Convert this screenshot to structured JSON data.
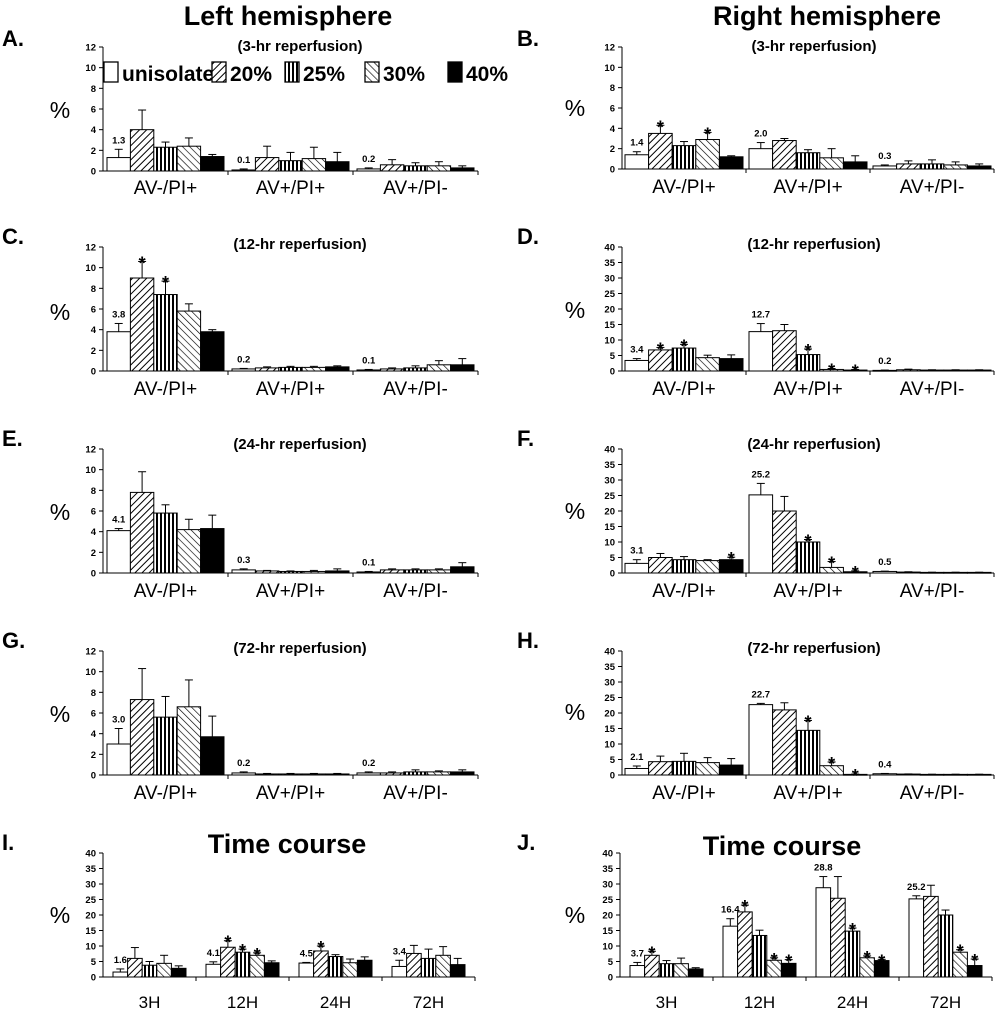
{
  "headers": {
    "left": "Left hemisphere",
    "right": "Right hemisphere"
  },
  "legend": [
    "unisolated",
    "20%",
    "25%",
    "30%",
    "40%"
  ],
  "series_fills": [
    "white",
    "hatch-diag",
    "hatch-vert",
    "hatch-back",
    "black"
  ],
  "chart_data": [
    {
      "id": "A",
      "letter": "A.",
      "title": "(3-hr reperfusion)",
      "type": "bar",
      "ylabel": "%",
      "ylim": [
        0,
        12
      ],
      "yticks": [
        0,
        2,
        4,
        6,
        8,
        10,
        12
      ],
      "categories": [
        "AV-/PI+",
        "AV+/PI+",
        "AV+/PI-"
      ],
      "values": [
        [
          1.3,
          4.0,
          2.3,
          2.4,
          1.4
        ],
        [
          0.1,
          1.3,
          1.0,
          1.2,
          0.9
        ],
        [
          0.2,
          0.6,
          0.5,
          0.5,
          0.3
        ]
      ],
      "errors": [
        [
          0.8,
          1.9,
          0.5,
          0.8,
          0.2
        ],
        [
          0.1,
          1.1,
          0.8,
          1.1,
          0.9
        ],
        [
          0.1,
          0.5,
          0.3,
          0.4,
          0.2
        ]
      ],
      "value_labels": [
        "1.3",
        "0.1",
        "0.2"
      ],
      "stars": [
        [
          false,
          false,
          false,
          false,
          false
        ],
        [
          false,
          false,
          false,
          false,
          false
        ],
        [
          false,
          false,
          false,
          false,
          false
        ]
      ]
    },
    {
      "id": "B",
      "letter": "B.",
      "title": "(3-hr reperfusion)",
      "type": "bar",
      "ylabel": "%",
      "ylim": [
        0,
        12
      ],
      "yticks": [
        0,
        2,
        4,
        6,
        8,
        10,
        12
      ],
      "categories": [
        "AV-/PI+",
        "AV+/PI+",
        "AV+/PI-"
      ],
      "values": [
        [
          1.4,
          3.5,
          2.3,
          2.9,
          1.2
        ],
        [
          2.0,
          2.8,
          1.6,
          1.1,
          0.7
        ],
        [
          0.3,
          0.5,
          0.5,
          0.4,
          0.3
        ]
      ],
      "errors": [
        [
          0.3,
          0.8,
          0.4,
          0.7,
          0.1
        ],
        [
          0.6,
          0.2,
          0.3,
          0.9,
          0.6
        ],
        [
          0.1,
          0.3,
          0.4,
          0.3,
          0.2
        ]
      ],
      "value_labels": [
        "1.4",
        "2.0",
        "0.3"
      ],
      "stars": [
        [
          false,
          true,
          false,
          true,
          false
        ],
        [
          false,
          false,
          false,
          false,
          false
        ],
        [
          false,
          false,
          false,
          false,
          false
        ]
      ]
    },
    {
      "id": "C",
      "letter": "C.",
      "title": "(12-hr reperfusion)",
      "type": "bar",
      "ylabel": "%",
      "ylim": [
        0,
        12
      ],
      "yticks": [
        0,
        2,
        4,
        6,
        8,
        10,
        12
      ],
      "categories": [
        "AV-/PI+",
        "AV+/PI+",
        "AV+/PI-"
      ],
      "values": [
        [
          3.8,
          9.0,
          7.4,
          5.8,
          3.8
        ],
        [
          0.2,
          0.3,
          0.35,
          0.35,
          0.4
        ],
        [
          0.1,
          0.2,
          0.3,
          0.6,
          0.6
        ]
      ],
      "errors": [
        [
          0.8,
          1.6,
          1.3,
          0.7,
          0.2
        ],
        [
          0.05,
          0.1,
          0.1,
          0.1,
          0.1
        ],
        [
          0.05,
          0.1,
          0.2,
          0.4,
          0.6
        ]
      ],
      "value_labels": [
        "3.8",
        "0.2",
        "0.1"
      ],
      "stars": [
        [
          false,
          true,
          true,
          false,
          false
        ],
        [
          false,
          false,
          false,
          false,
          false
        ],
        [
          false,
          false,
          false,
          false,
          false
        ]
      ]
    },
    {
      "id": "D",
      "letter": "D.",
      "title": "(12-hr reperfusion)",
      "type": "bar",
      "ylabel": "%",
      "ylim": [
        0,
        40
      ],
      "yticks": [
        0,
        5,
        10,
        15,
        20,
        25,
        30,
        35,
        40
      ],
      "categories": [
        "AV-/PI+",
        "AV+/PI+",
        "AV+/PI-"
      ],
      "values": [
        [
          3.4,
          6.8,
          7.4,
          4.3,
          4.0
        ],
        [
          12.7,
          13.0,
          5.3,
          0.5,
          0.3
        ],
        [
          0.2,
          0.4,
          0.3,
          0.3,
          0.3
        ]
      ],
      "errors": [
        [
          0.6,
          0.8,
          1.2,
          0.8,
          1.2
        ],
        [
          2.6,
          2.0,
          1.8,
          0.3,
          0.2
        ],
        [
          0.1,
          0.2,
          0.1,
          0.1,
          0.1
        ]
      ],
      "value_labels": [
        "3.4",
        "12.7",
        "0.2"
      ],
      "stars": [
        [
          false,
          true,
          true,
          false,
          false
        ],
        [
          false,
          false,
          true,
          true,
          true
        ],
        [
          false,
          false,
          false,
          false,
          false
        ]
      ]
    },
    {
      "id": "E",
      "letter": "E.",
      "title": "(24-hr reperfusion)",
      "type": "bar",
      "ylabel": "%",
      "ylim": [
        0,
        12
      ],
      "yticks": [
        0,
        2,
        4,
        6,
        8,
        10,
        12
      ],
      "categories": [
        "AV-/PI+",
        "AV+/PI+",
        "AV+/PI-"
      ],
      "values": [
        [
          4.1,
          7.8,
          5.8,
          4.2,
          4.3
        ],
        [
          0.3,
          0.2,
          0.15,
          0.15,
          0.2
        ],
        [
          0.1,
          0.3,
          0.3,
          0.3,
          0.6
        ]
      ],
      "errors": [
        [
          0.2,
          2.0,
          0.8,
          1.0,
          1.3
        ],
        [
          0.1,
          0.05,
          0.05,
          0.1,
          0.2
        ],
        [
          0.05,
          0.1,
          0.1,
          0.1,
          0.4
        ]
      ],
      "value_labels": [
        "4.1",
        "0.3",
        "0.1"
      ],
      "stars": [
        [
          false,
          false,
          false,
          false,
          false
        ],
        [
          false,
          false,
          false,
          false,
          false
        ],
        [
          false,
          false,
          false,
          false,
          false
        ]
      ]
    },
    {
      "id": "F",
      "letter": "F.",
      "title": "(24-hr reperfusion)",
      "type": "bar",
      "ylabel": "%",
      "ylim": [
        0,
        40
      ],
      "yticks": [
        0,
        5,
        10,
        15,
        20,
        25,
        30,
        35,
        40
      ],
      "categories": [
        "AV-/PI+",
        "AV+/PI+",
        "AV+/PI-"
      ],
      "values": [
        [
          3.1,
          5.0,
          4.3,
          4.0,
          4.3
        ],
        [
          25.2,
          20.0,
          10.0,
          1.8,
          0.4
        ],
        [
          0.5,
          0.3,
          0.2,
          0.2,
          0.2
        ]
      ],
      "errors": [
        [
          1.2,
          1.3,
          1.0,
          0.3,
          0.8
        ],
        [
          3.7,
          4.7,
          0.8,
          1.9,
          0.3
        ],
        [
          0.1,
          0.1,
          0.05,
          0.05,
          0.05
        ]
      ],
      "value_labels": [
        "3.1",
        "25.2",
        "0.5"
      ],
      "stars": [
        [
          false,
          false,
          false,
          false,
          true
        ],
        [
          false,
          false,
          true,
          true,
          true
        ],
        [
          false,
          false,
          false,
          false,
          false
        ]
      ]
    },
    {
      "id": "G",
      "letter": "G.",
      "title": "(72-hr reperfusion)",
      "type": "bar",
      "ylabel": "%",
      "ylim": [
        0,
        12
      ],
      "yticks": [
        0,
        2,
        4,
        6,
        8,
        10,
        12
      ],
      "categories": [
        "AV-/PI+",
        "AV+/PI+",
        "AV+/PI-"
      ],
      "values": [
        [
          3.0,
          7.3,
          5.6,
          6.6,
          3.7
        ],
        [
          0.2,
          0.1,
          0.1,
          0.1,
          0.1
        ],
        [
          0.2,
          0.2,
          0.3,
          0.3,
          0.3
        ]
      ],
      "errors": [
        [
          1.5,
          3.0,
          2.0,
          2.6,
          2.0
        ],
        [
          0.1,
          0.05,
          0.05,
          0.05,
          0.05
        ],
        [
          0.1,
          0.1,
          0.2,
          0.1,
          0.2
        ]
      ],
      "value_labels": [
        "3.0",
        "0.2",
        "0.2"
      ],
      "stars": [
        [
          false,
          false,
          false,
          false,
          false
        ],
        [
          false,
          false,
          false,
          false,
          false
        ],
        [
          false,
          false,
          false,
          false,
          false
        ]
      ]
    },
    {
      "id": "H",
      "letter": "H.",
      "title": "(72-hr reperfusion)",
      "type": "bar",
      "ylabel": "%",
      "ylim": [
        0,
        40
      ],
      "yticks": [
        0,
        5,
        10,
        15,
        20,
        25,
        30,
        35,
        40
      ],
      "categories": [
        "AV-/PI+",
        "AV+/PI+",
        "AV+/PI-"
      ],
      "values": [
        [
          2.1,
          4.3,
          4.4,
          4.0,
          3.2
        ],
        [
          22.7,
          21.0,
          14.4,
          3.0,
          0.2
        ],
        [
          0.4,
          0.3,
          0.2,
          0.2,
          0.2
        ]
      ],
      "errors": [
        [
          0.8,
          1.8,
          2.6,
          1.6,
          2.1
        ],
        [
          0.4,
          2.3,
          3.2,
          1.2,
          0.1
        ],
        [
          0.1,
          0.05,
          0.05,
          0.05,
          0.05
        ]
      ],
      "value_labels": [
        "2.1",
        "22.7",
        "0.4"
      ],
      "stars": [
        [
          false,
          false,
          false,
          false,
          false
        ],
        [
          false,
          false,
          true,
          true,
          true
        ],
        [
          false,
          false,
          false,
          false,
          false
        ]
      ]
    },
    {
      "id": "I",
      "letter": "I.",
      "title": "Time course",
      "type": "bar",
      "ylabel": "%",
      "ylim": [
        0,
        40
      ],
      "yticks": [
        0,
        5,
        10,
        15,
        20,
        25,
        30,
        35,
        40
      ],
      "categories": [
        "3H",
        "12H",
        "24H",
        "72H"
      ],
      "values": [
        [
          1.6,
          6.0,
          3.8,
          4.4,
          2.8
        ],
        [
          4.1,
          9.6,
          8.0,
          7.0,
          4.6
        ],
        [
          4.5,
          8.4,
          6.6,
          4.6,
          5.4
        ],
        [
          3.4,
          7.6,
          6.0,
          7.0,
          4.0
        ]
      ],
      "errors": [
        [
          1.0,
          3.5,
          1.2,
          2.6,
          0.8
        ],
        [
          0.8,
          2.1,
          1.0,
          0.8,
          0.6
        ],
        [
          0.2,
          1.6,
          0.6,
          1.2,
          1.1
        ],
        [
          2.0,
          2.6,
          3.0,
          2.8,
          2.0
        ]
      ],
      "value_labels": [
        "1.6",
        "4.1",
        "4.5",
        "3.4"
      ],
      "stars": [
        [
          false,
          false,
          false,
          false,
          false
        ],
        [
          false,
          true,
          true,
          true,
          false
        ],
        [
          false,
          true,
          false,
          false,
          false
        ],
        [
          false,
          false,
          false,
          false,
          false
        ]
      ]
    },
    {
      "id": "J",
      "letter": "J.",
      "title": "Time course",
      "type": "bar",
      "ylabel": "%",
      "ylim": [
        0,
        40
      ],
      "yticks": [
        0,
        5,
        10,
        15,
        20,
        25,
        30,
        35,
        40
      ],
      "categories": [
        "3H",
        "12H",
        "24H",
        "72H"
      ],
      "values": [
        [
          3.7,
          7.0,
          4.3,
          4.3,
          2.6
        ],
        [
          16.4,
          21.0,
          13.4,
          5.4,
          4.4
        ],
        [
          28.8,
          25.4,
          14.8,
          6.2,
          5.3
        ],
        [
          25.2,
          26.0,
          20.0,
          8.0,
          3.7
        ]
      ],
      "errors": [
        [
          1.0,
          1.3,
          1.0,
          1.8,
          0.4
        ],
        [
          2.4,
          2.2,
          1.7,
          0.8,
          1.2
        ],
        [
          3.6,
          7.0,
          1.0,
          0.6,
          0.4
        ],
        [
          1.0,
          3.6,
          1.6,
          0.8,
          2.1
        ]
      ],
      "value_labels": [
        "3.7",
        "16.4",
        "28.8",
        "25.2"
      ],
      "stars": [
        [
          false,
          true,
          false,
          false,
          false
        ],
        [
          false,
          true,
          false,
          true,
          true
        ],
        [
          false,
          false,
          true,
          true,
          true
        ],
        [
          false,
          false,
          false,
          true,
          true
        ]
      ]
    }
  ]
}
